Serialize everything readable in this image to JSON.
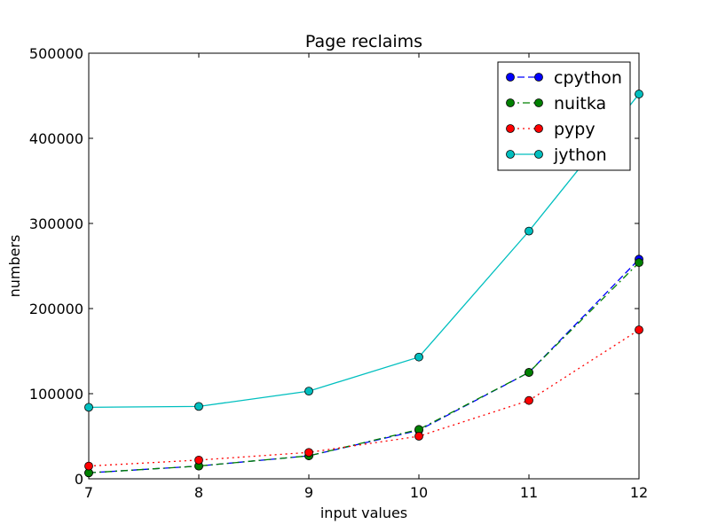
{
  "chart_data": {
    "type": "line",
    "title": "Page reclaims",
    "xlabel": "input values",
    "ylabel": "numbers",
    "xlim": [
      7,
      12
    ],
    "ylim": [
      0,
      500000
    ],
    "x": [
      7,
      8,
      9,
      10,
      11,
      12
    ],
    "xticks": [
      "7",
      "8",
      "9",
      "10",
      "11",
      "12"
    ],
    "yticks": [
      {
        "value": 0,
        "label": "0"
      },
      {
        "value": 100000,
        "label": "100000"
      },
      {
        "value": 200000,
        "label": "200000"
      },
      {
        "value": 300000,
        "label": "300000"
      },
      {
        "value": 400000,
        "label": "400000"
      },
      {
        "value": 500000,
        "label": "500000"
      }
    ],
    "grid": false,
    "legend_position": "top-right",
    "series": [
      {
        "name": "cpython",
        "color": "#0000ff",
        "dash": "8,4",
        "values": [
          7000,
          15000,
          27000,
          57000,
          125000,
          258000
        ]
      },
      {
        "name": "nuitka",
        "color": "#008000",
        "dash": "8,4,2,4",
        "values": [
          7000,
          15000,
          27000,
          58000,
          125000,
          254000
        ]
      },
      {
        "name": "pypy",
        "color": "#ff0000",
        "dash": "2,4",
        "values": [
          15000,
          22000,
          31000,
          50000,
          92000,
          175000
        ]
      },
      {
        "name": "jython",
        "color": "#00bfbf",
        "dash": "",
        "values": [
          84000,
          85000,
          103000,
          143000,
          291000,
          452000
        ]
      }
    ]
  }
}
